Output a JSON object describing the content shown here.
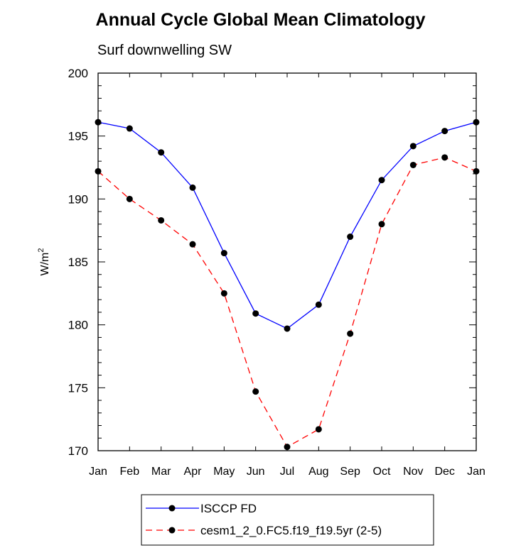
{
  "chart_data": {
    "type": "line",
    "title": "Annual Cycle Global Mean Climatology",
    "subtitle": "Surf downwelling SW",
    "xlabel": "",
    "ylabel": "W/m",
    "ylabel_superscript": "2",
    "categories": [
      "Jan",
      "Feb",
      "Mar",
      "Apr",
      "May",
      "Jun",
      "Jul",
      "Aug",
      "Sep",
      "Oct",
      "Nov",
      "Dec",
      "Jan"
    ],
    "ylim": [
      170,
      200
    ],
    "yticks": [
      170,
      175,
      180,
      185,
      190,
      195,
      200
    ],
    "grid": false,
    "legend_position": "bottom",
    "series": [
      {
        "name": "ISCCP FD",
        "color": "#0000ff",
        "dash": "solid",
        "values": [
          196.1,
          195.6,
          193.7,
          190.9,
          185.7,
          180.9,
          179.7,
          181.6,
          187.0,
          191.5,
          194.2,
          195.4,
          196.1
        ]
      },
      {
        "name": "cesm1_2_0.FC5.f19_f19.5yr (2-5)",
        "color": "#ff0000",
        "dash": "dashed",
        "values": [
          192.2,
          190.0,
          188.3,
          186.4,
          182.5,
          174.7,
          170.3,
          171.7,
          179.3,
          188.0,
          192.7,
          193.3,
          192.2
        ]
      }
    ]
  }
}
